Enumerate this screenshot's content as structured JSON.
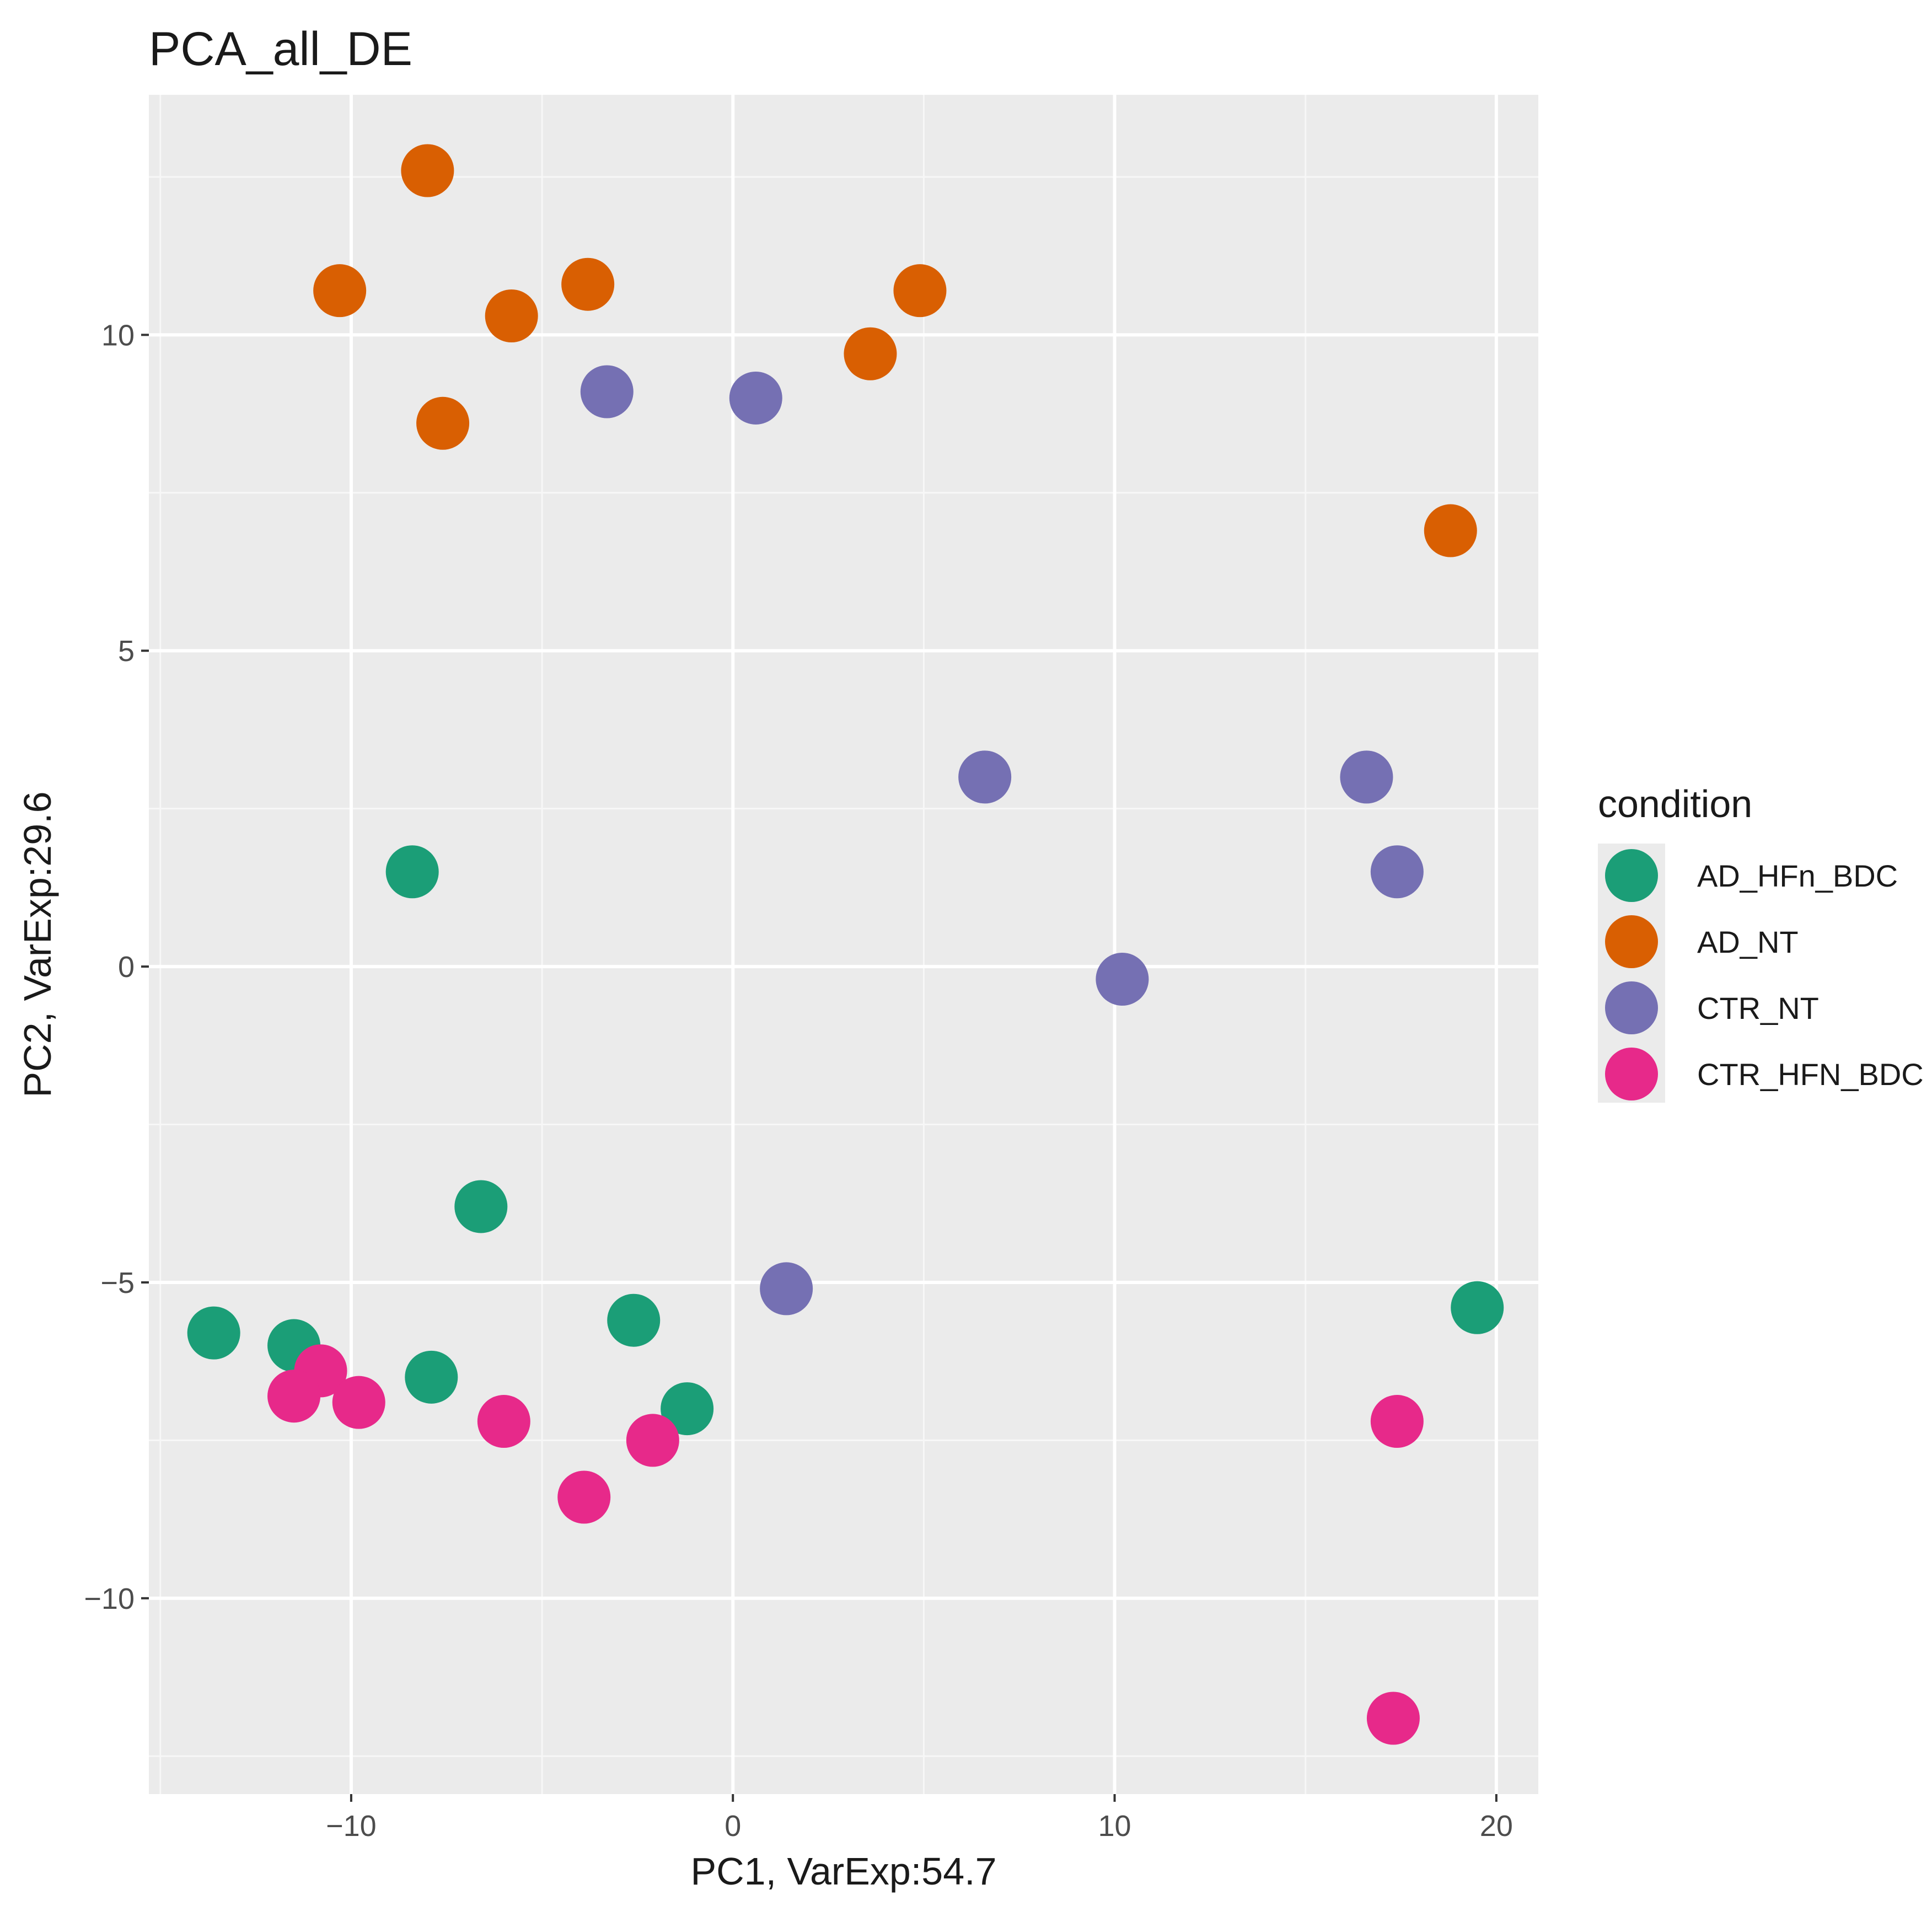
{
  "chart_data": {
    "type": "scatter",
    "title": "PCA_all_DE",
    "xlabel": "PC1, VarExp:54.7",
    "ylabel": "PC2, VarExp:29.6",
    "xlim": [
      -15.3,
      21.1
    ],
    "ylim": [
      -13.1,
      13.8
    ],
    "x_ticks": [
      -10,
      0,
      10,
      20
    ],
    "x_tick_labels": [
      "−10",
      "0",
      "10",
      "20"
    ],
    "y_ticks": [
      -10,
      -5,
      0,
      5,
      10
    ],
    "y_tick_labels": [
      "−10",
      "−5",
      "0",
      "5",
      "10"
    ],
    "grid": true,
    "legend": {
      "title": "condition",
      "position": "right"
    },
    "series": [
      {
        "name": "AD_HFn_BDC",
        "color": "#1b9e77",
        "points": [
          {
            "x": -8.4,
            "y": 1.5
          },
          {
            "x": -6.6,
            "y": -3.8
          },
          {
            "x": -13.6,
            "y": -5.8
          },
          {
            "x": -11.5,
            "y": -6.0
          },
          {
            "x": -7.9,
            "y": -6.5
          },
          {
            "x": -2.6,
            "y": -5.6
          },
          {
            "x": -1.2,
            "y": -7.0
          },
          {
            "x": 19.5,
            "y": -5.4
          }
        ]
      },
      {
        "name": "AD_NT",
        "color": "#d95f02",
        "points": [
          {
            "x": -8.0,
            "y": 12.6
          },
          {
            "x": -10.3,
            "y": 10.7
          },
          {
            "x": -5.8,
            "y": 10.3
          },
          {
            "x": -3.8,
            "y": 10.8
          },
          {
            "x": -7.6,
            "y": 8.6
          },
          {
            "x": 3.6,
            "y": 9.7
          },
          {
            "x": 4.9,
            "y": 10.7
          },
          {
            "x": 18.8,
            "y": 6.9
          }
        ]
      },
      {
        "name": "CTR_NT",
        "color": "#7570b3",
        "points": [
          {
            "x": -3.3,
            "y": 9.1
          },
          {
            "x": 0.6,
            "y": 9.0
          },
          {
            "x": 6.6,
            "y": 3.0
          },
          {
            "x": 16.6,
            "y": 3.0
          },
          {
            "x": 17.4,
            "y": 1.5
          },
          {
            "x": 10.2,
            "y": -0.2
          },
          {
            "x": 1.4,
            "y": -5.1
          }
        ]
      },
      {
        "name": "CTR_HFN_BDC",
        "color": "#e7298a",
        "points": [
          {
            "x": -10.8,
            "y": -6.4
          },
          {
            "x": -11.5,
            "y": -6.8
          },
          {
            "x": -9.8,
            "y": -6.9
          },
          {
            "x": -6.0,
            "y": -7.2
          },
          {
            "x": -2.1,
            "y": -7.5
          },
          {
            "x": -3.9,
            "y": -8.4
          },
          {
            "x": 17.4,
            "y": -7.2
          },
          {
            "x": 17.3,
            "y": -11.9
          }
        ]
      }
    ]
  }
}
